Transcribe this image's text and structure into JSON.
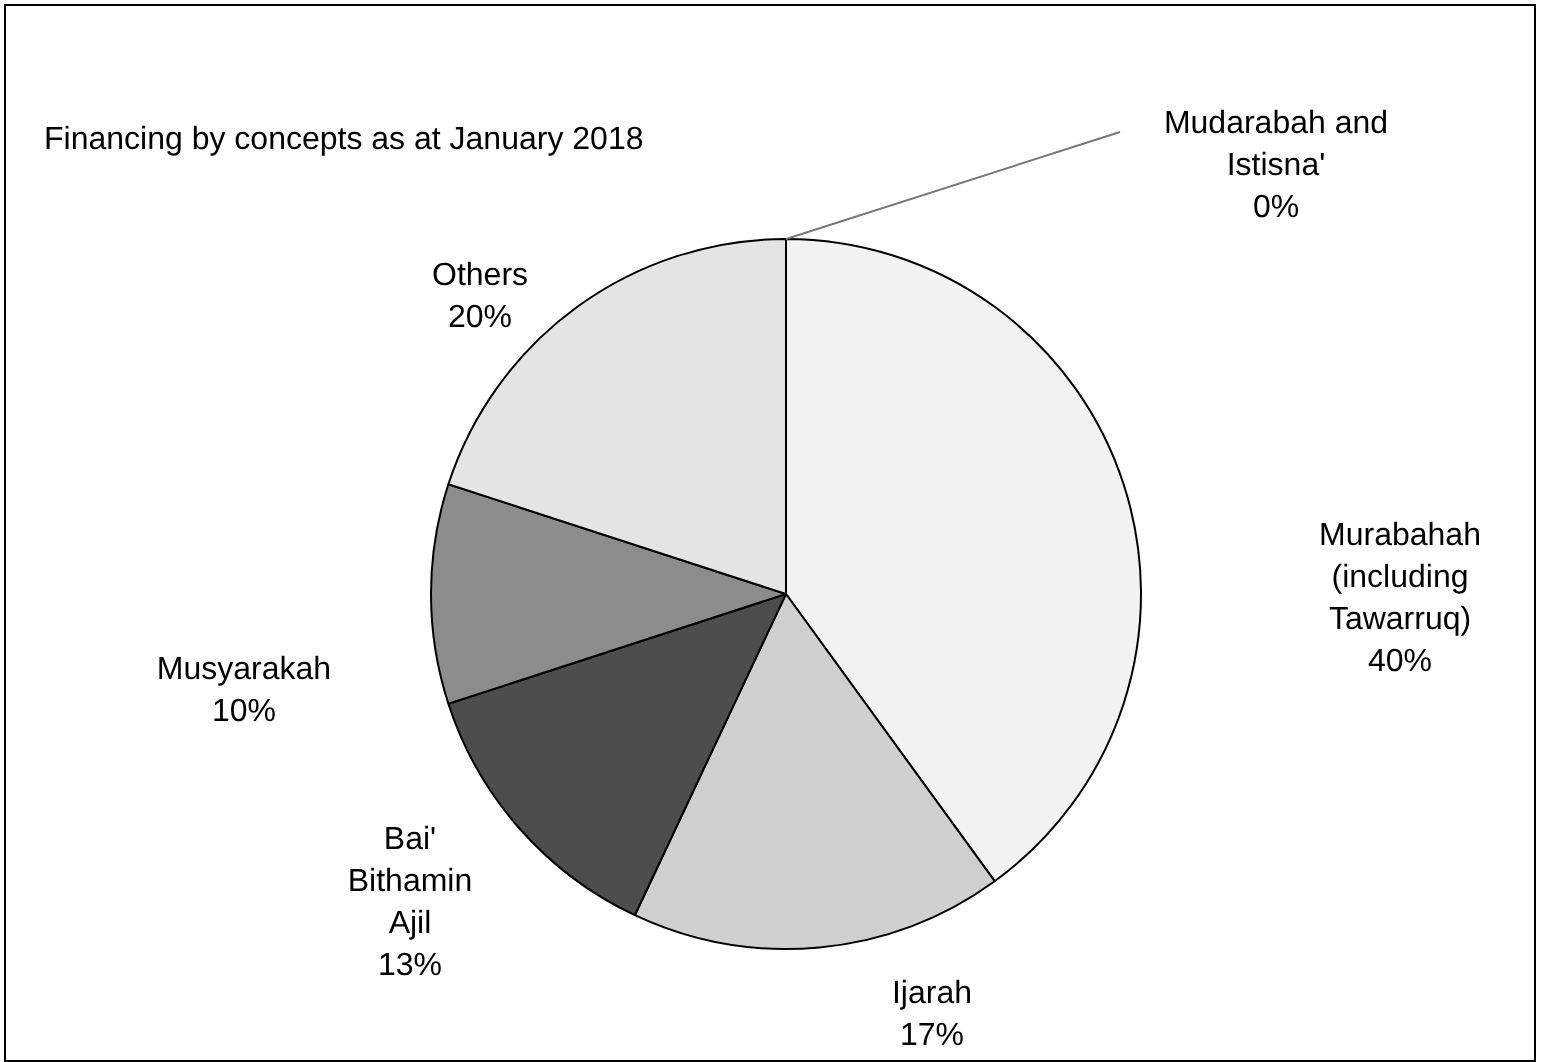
{
  "chart_data": {
    "type": "pie",
    "title": "Financing by concepts as at January 2018",
    "categories": [
      "Mudarabah and Istisna'",
      "Murabahah (including Tawarruq)",
      "Ijarah",
      "Bai' Bithamin Ajil",
      "Musyarakah",
      "Others"
    ],
    "values": [
      0,
      40,
      17,
      13,
      10,
      20
    ],
    "value_labels": [
      "0%",
      "40%",
      "17%",
      "13%",
      "10%",
      "20%"
    ],
    "colors": [
      "#ffffff",
      "#f2f2f2",
      "#cfcfcf",
      "#4d4d4d",
      "#8c8c8c",
      "#e4e4e4"
    ],
    "legend": false
  }
}
